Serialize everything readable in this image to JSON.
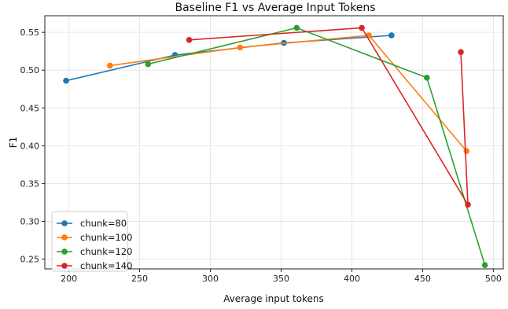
{
  "chart_data": {
    "type": "line",
    "title": "Baseline F1 vs Average Input Tokens",
    "xlabel": "Average input tokens",
    "ylabel": "F1",
    "xlim": [
      183,
      507
    ],
    "ylim": [
      0.237,
      0.572
    ],
    "xticks": [
      200,
      250,
      300,
      350,
      400,
      450,
      500
    ],
    "yticks": [
      0.25,
      0.3,
      0.35,
      0.4,
      0.45,
      0.5,
      0.55
    ],
    "xtick_labels": [
      "200",
      "250",
      "300",
      "350",
      "400",
      "450",
      "500"
    ],
    "ytick_labels": [
      "0.25",
      "0.30",
      "0.35",
      "0.40",
      "0.45",
      "0.50",
      "0.55"
    ],
    "grid": true,
    "legend_position": "lower-left",
    "series": [
      {
        "name": "chunk=80",
        "color": "#1f77b4",
        "points": [
          [
            198,
            0.486
          ],
          [
            275,
            0.52
          ],
          [
            352,
            0.536
          ],
          [
            428,
            0.546
          ]
        ]
      },
      {
        "name": "chunk=100",
        "color": "#ff7f0e",
        "points": [
          [
            229,
            0.506
          ],
          [
            321,
            0.53
          ],
          [
            412,
            0.546
          ],
          [
            481,
            0.393
          ]
        ]
      },
      {
        "name": "chunk=120",
        "color": "#2ca02c",
        "points": [
          [
            256,
            0.508
          ],
          [
            361,
            0.556
          ],
          [
            453,
            0.49
          ],
          [
            494,
            0.242
          ]
        ]
      },
      {
        "name": "chunk=140",
        "color": "#d62728",
        "points": [
          [
            285,
            0.54
          ],
          [
            407,
            0.556
          ],
          [
            482,
            0.322
          ],
          [
            477,
            0.524
          ]
        ]
      }
    ]
  }
}
